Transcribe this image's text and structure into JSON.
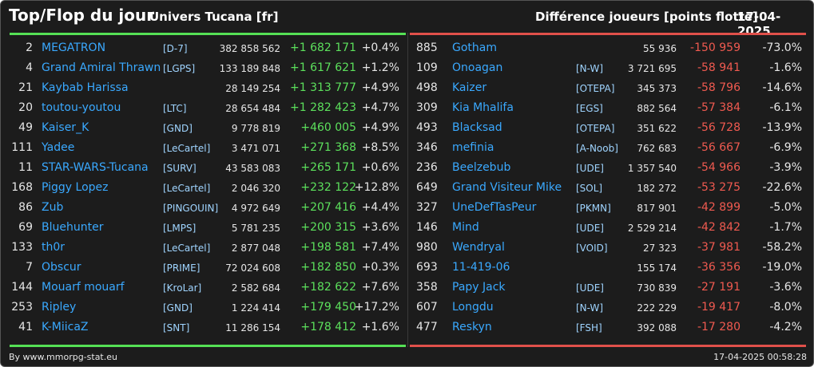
{
  "header": {
    "title": "Top/Flop du jour",
    "universe": "Univers Tucana [fr]",
    "difference": "Différence joueurs [points flotte]",
    "date": "17-04-2025"
  },
  "colors": {
    "accent_up": "#5ce05c",
    "accent_down": "#f05a50",
    "name": "#3aa9ff"
  },
  "top": [
    {
      "rank": "2",
      "name": "MEGATRON",
      "ally": "[D-7]",
      "points": "382 858 562",
      "diff": "+1 682 171",
      "pct": "+0.4%"
    },
    {
      "rank": "4",
      "name": "Grand Amiral Thrawn",
      "ally": "[LGPS]",
      "points": "133 189 848",
      "diff": "+1 617 621",
      "pct": "+1.2%"
    },
    {
      "rank": "21",
      "name": "Kaybab Harissa",
      "ally": "",
      "points": "28 149 254",
      "diff": "+1 313 777",
      "pct": "+4.9%"
    },
    {
      "rank": "20",
      "name": "toutou-youtou",
      "ally": "[LTC]",
      "points": "28 654 484",
      "diff": "+1 282 423",
      "pct": "+4.7%"
    },
    {
      "rank": "49",
      "name": "Kaiser_K",
      "ally": "[GND]",
      "points": "9 778 819",
      "diff": "+460 005",
      "pct": "+4.9%"
    },
    {
      "rank": "111",
      "name": "Yadee",
      "ally": "[LeCartel]",
      "points": "3 471 071",
      "diff": "+271 368",
      "pct": "+8.5%"
    },
    {
      "rank": "11",
      "name": "STAR-WARS-Tucana",
      "ally": "[SURV]",
      "points": "43 583 083",
      "diff": "+265 171",
      "pct": "+0.6%"
    },
    {
      "rank": "168",
      "name": "Piggy Lopez",
      "ally": "[LeCartel]",
      "points": "2 046 320",
      "diff": "+232 122",
      "pct": "+12.8%"
    },
    {
      "rank": "86",
      "name": "Zub",
      "ally": "[PINGOUIN]",
      "points": "4 972 649",
      "diff": "+207 416",
      "pct": "+4.4%"
    },
    {
      "rank": "69",
      "name": "Bluehunter",
      "ally": "[LMPS]",
      "points": "5 781 235",
      "diff": "+200 315",
      "pct": "+3.6%"
    },
    {
      "rank": "133",
      "name": "th0r",
      "ally": "[LeCartel]",
      "points": "2 877 048",
      "diff": "+198 581",
      "pct": "+7.4%"
    },
    {
      "rank": "7",
      "name": "Obscur",
      "ally": "[PRIME]",
      "points": "72 024 608",
      "diff": "+182 850",
      "pct": "+0.3%"
    },
    {
      "rank": "144",
      "name": "Mouarf mouarf",
      "ally": "[KroLar]",
      "points": "2 582 684",
      "diff": "+182 622",
      "pct": "+7.6%"
    },
    {
      "rank": "253",
      "name": "Ripley",
      "ally": "[GND]",
      "points": "1 224 414",
      "diff": "+179 450",
      "pct": "+17.2%"
    },
    {
      "rank": "41",
      "name": "K-MiicaZ",
      "ally": "[SNT]",
      "points": "11 286 154",
      "diff": "+178 412",
      "pct": "+1.6%"
    }
  ],
  "flop": [
    {
      "rank": "885",
      "name": "Gotham",
      "ally": "",
      "points": "55 936",
      "diff": "-150 959",
      "pct": "-73.0%"
    },
    {
      "rank": "109",
      "name": "Onoagan",
      "ally": "[N-W]",
      "points": "3 721 695",
      "diff": "-58 941",
      "pct": "-1.6%"
    },
    {
      "rank": "498",
      "name": "Kaizer",
      "ally": "[OTEPA]",
      "points": "345 373",
      "diff": "-58 796",
      "pct": "-14.6%"
    },
    {
      "rank": "309",
      "name": "Kia Mhalifa",
      "ally": "[EGS]",
      "points": "882 564",
      "diff": "-57 384",
      "pct": "-6.1%"
    },
    {
      "rank": "493",
      "name": "Blacksad",
      "ally": "[OTEPA]",
      "points": "351 622",
      "diff": "-56 728",
      "pct": "-13.9%"
    },
    {
      "rank": "346",
      "name": "mefinia",
      "ally": "[A-Noob]",
      "points": "762 683",
      "diff": "-56 667",
      "pct": "-6.9%"
    },
    {
      "rank": "236",
      "name": "Beelzebub",
      "ally": "[UDE]",
      "points": "1 357 540",
      "diff": "-54 966",
      "pct": "-3.9%"
    },
    {
      "rank": "649",
      "name": "Grand Visiteur Mike",
      "ally": "[SOL]",
      "points": "182 272",
      "diff": "-53 275",
      "pct": "-22.6%"
    },
    {
      "rank": "327",
      "name": "UneDefTasPeur",
      "ally": "[PKMN]",
      "points": "817 901",
      "diff": "-42 899",
      "pct": "-5.0%"
    },
    {
      "rank": "146",
      "name": "Mind",
      "ally": "[UDE]",
      "points": "2 529 214",
      "diff": "-42 842",
      "pct": "-1.7%"
    },
    {
      "rank": "980",
      "name": "Wendryal",
      "ally": "[VOID]",
      "points": "27 323",
      "diff": "-37 981",
      "pct": "-58.2%"
    },
    {
      "rank": "693",
      "name": "11-419-06",
      "ally": "",
      "points": "155 174",
      "diff": "-36 356",
      "pct": "-19.0%"
    },
    {
      "rank": "358",
      "name": "Papy Jack",
      "ally": "[UDE]",
      "points": "730 839",
      "diff": "-27 191",
      "pct": "-3.6%"
    },
    {
      "rank": "607",
      "name": "Longdu",
      "ally": "[N-W]",
      "points": "222 229",
      "diff": "-19 417",
      "pct": "-8.0%"
    },
    {
      "rank": "477",
      "name": "Reskyn",
      "ally": "[FSH]",
      "points": "392 088",
      "diff": "-17 280",
      "pct": "-4.2%"
    }
  ],
  "footer": {
    "credit": "By www.mmorpg-stat.eu",
    "timestamp": "17-04-2025 00:58:28"
  }
}
